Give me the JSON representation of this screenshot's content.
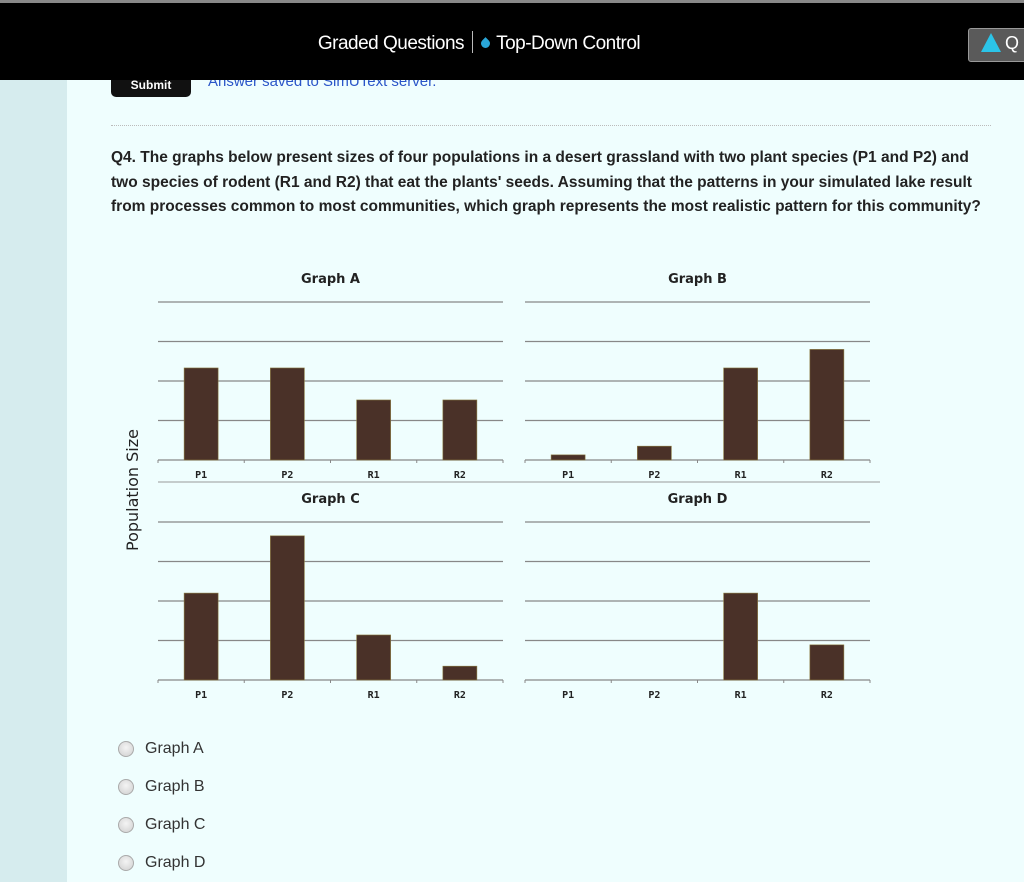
{
  "header": {
    "section": "Graded Questions",
    "module": "Top-Down Control",
    "button_label": "Q"
  },
  "submit_label": "Submit",
  "saved_message": "Answer saved to SimUText server.",
  "question": "Q4. The graphs below present sizes of four populations in a desert grassland with two plant species (P1 and P2) and two species of rodent (R1 and R2) that eat the plants' seeds. Assuming that the patterns in your simulated lake result from processes common to most communities, which graph represents the most realistic pattern for this community?",
  "options": [
    "Graph A",
    "Graph B",
    "Graph C",
    "Graph D"
  ],
  "colors": {
    "bar": "#4a3128",
    "grid": "#888888",
    "accent": "#2aa6d8"
  },
  "chart_data": [
    {
      "type": "bar",
      "title": "Graph A",
      "categories": [
        "P1",
        "P2",
        "R1",
        "R2"
      ],
      "values": [
        2.33,
        2.33,
        1.52,
        1.52
      ],
      "ylabel": "Population Size",
      "ylim": [
        0,
        4
      ],
      "grid": true
    },
    {
      "type": "bar",
      "title": "Graph B",
      "categories": [
        "P1",
        "P2",
        "R1",
        "R2"
      ],
      "values": [
        0.13,
        0.35,
        2.33,
        2.8
      ],
      "ylim": [
        0,
        4
      ],
      "grid": true
    },
    {
      "type": "bar",
      "title": "Graph C",
      "categories": [
        "P1",
        "P2",
        "R1",
        "R2"
      ],
      "values": [
        2.2,
        3.65,
        1.14,
        0.35
      ],
      "ylim": [
        0,
        4
      ],
      "grid": true
    },
    {
      "type": "bar",
      "title": "Graph D",
      "categories": [
        "P1",
        "P2",
        "R1",
        "R2"
      ],
      "values": [
        0,
        0,
        2.2,
        0.89
      ],
      "ylim": [
        0,
        4
      ],
      "grid": true
    }
  ]
}
